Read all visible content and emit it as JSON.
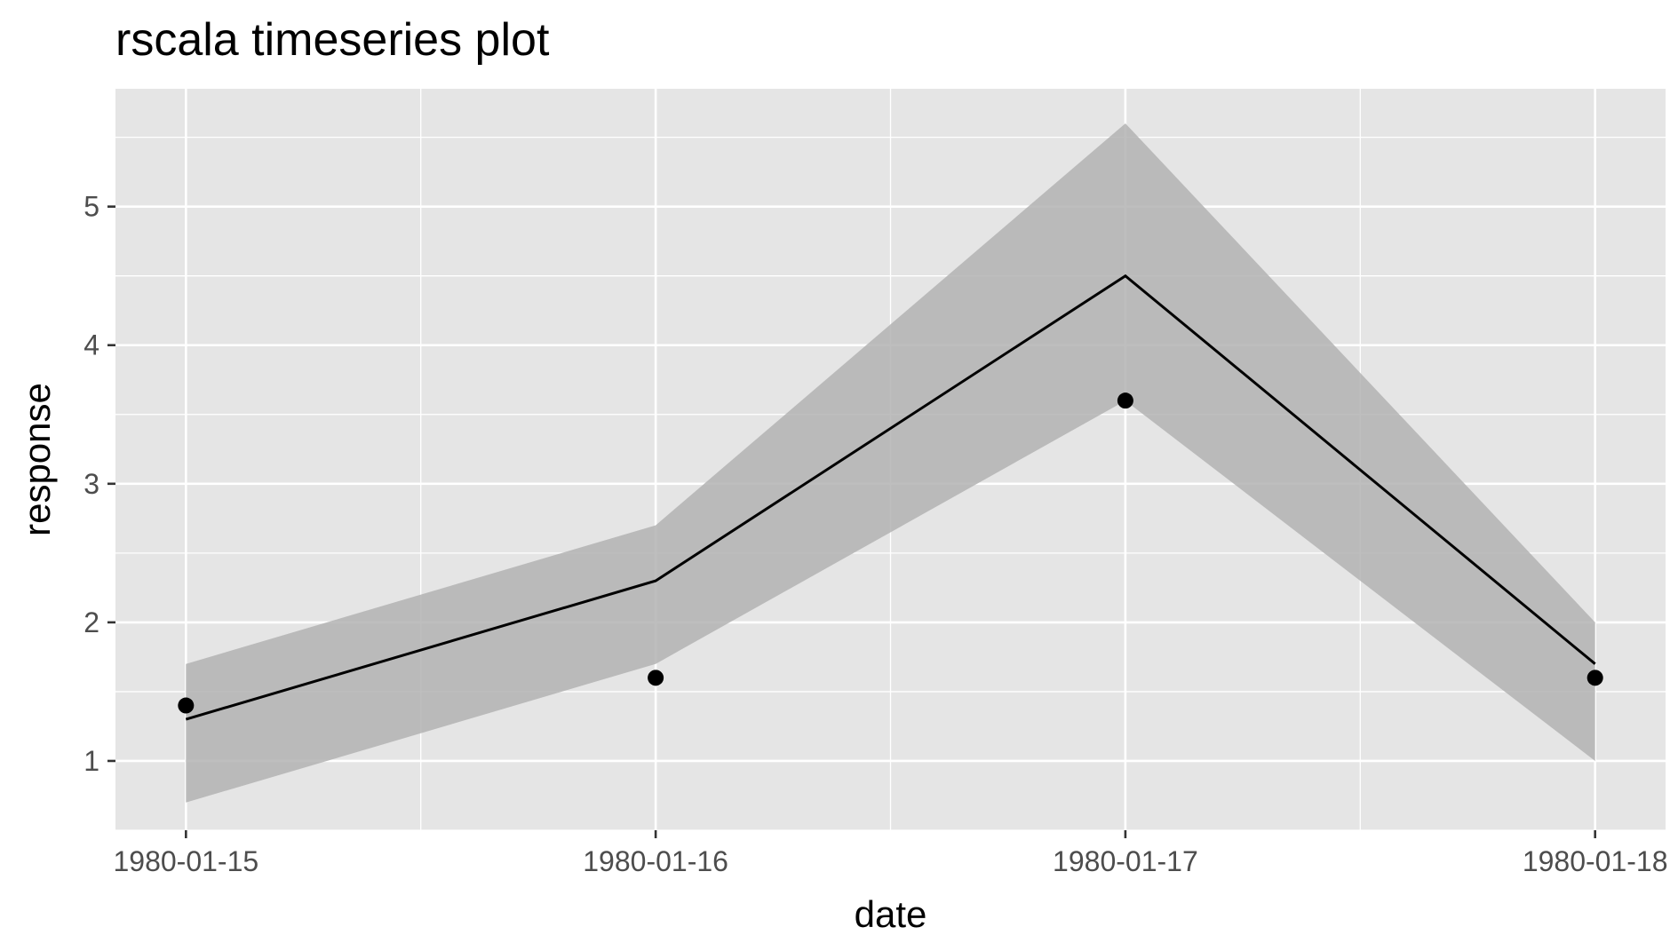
{
  "chart_data": {
    "type": "line",
    "title": "rscala timeseries plot",
    "xlabel": "date",
    "ylabel": "response",
    "x": [
      "1980-01-15",
      "1980-01-16",
      "1980-01-17",
      "1980-01-18"
    ],
    "x_tick_labels": [
      "1980-01-15",
      "1980-01-16",
      "1980-01-17",
      "1980-01-18"
    ],
    "y_ticks": [
      1,
      2,
      3,
      4,
      5
    ],
    "y_tick_labels": [
      "1",
      "2",
      "3",
      "4",
      "5"
    ],
    "xlim": [
      "1980-01-14T20:24",
      "1980-01-18T03:36"
    ],
    "ylim": [
      0.5,
      5.85
    ],
    "grid": true,
    "legend": "none",
    "series": [
      {
        "kind": "line",
        "values": [
          1.3,
          2.3,
          4.5,
          1.7
        ],
        "color": "#000000"
      },
      {
        "kind": "ribbon",
        "lower": [
          0.7,
          1.7,
          3.6,
          1.0
        ],
        "upper": [
          1.7,
          2.7,
          5.6,
          2.0
        ],
        "color": "#b3b3b3"
      },
      {
        "kind": "points",
        "values": [
          1.4,
          1.6,
          3.6,
          1.6
        ],
        "color": "#000000"
      }
    ],
    "colors": {
      "panel_background": "#e5e5e5",
      "grid": "#ffffff",
      "ribbon": "#b3b3b3",
      "line": "#000000",
      "tick": "#333333",
      "tick_label": "#4d4d4d"
    }
  }
}
